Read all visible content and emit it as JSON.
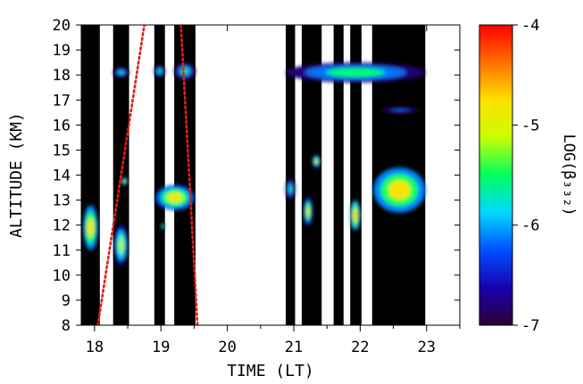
{
  "chart_data": {
    "type": "heatmap",
    "xlabel": "TIME (LT)",
    "ylabel": "ALTITUDE (KM)",
    "colorbar_label": "LOG(β₃₃₂)",
    "xlim": [
      17.8,
      23.5
    ],
    "ylim": [
      8,
      20
    ],
    "xticks": [
      18,
      19,
      20,
      21,
      22,
      23
    ],
    "yticks": [
      8,
      9,
      10,
      11,
      12,
      13,
      14,
      15,
      16,
      17,
      18,
      19,
      20
    ],
    "colorbar": {
      "range": [
        -7,
        -4
      ],
      "ticks": [
        -7,
        -6,
        -5,
        -4
      ],
      "colormap": [
        "#2a0033",
        "#1a00b0",
        "#0050ff",
        "#00d8ff",
        "#00ff60",
        "#c8ff00",
        "#ffe000",
        "#ff7000",
        "#ff0000"
      ]
    },
    "observation_periods": [
      [
        17.8,
        18.08
      ],
      [
        18.28,
        18.52
      ],
      [
        18.9,
        19.06
      ],
      [
        19.2,
        19.52
      ],
      [
        20.88,
        21.02
      ],
      [
        21.12,
        21.42
      ],
      [
        21.6,
        21.75
      ],
      [
        21.85,
        22.02
      ],
      [
        22.18,
        22.98
      ]
    ],
    "missing_value_color": "#000000",
    "cirrus_features": [
      {
        "x": [
          18.28,
          18.52
        ],
        "alt": [
          17.9,
          18.3
        ],
        "log_beta": -5.9
      },
      {
        "x": [
          18.9,
          19.06
        ],
        "alt": [
          17.9,
          18.4
        ],
        "log_beta": -5.8
      },
      {
        "x": [
          19.2,
          19.52
        ],
        "alt": [
          17.8,
          18.5
        ],
        "log_beta": -5.7
      },
      {
        "x": [
          20.88,
          22.98
        ],
        "alt": [
          17.7,
          18.5
        ],
        "log_beta": -5.5
      },
      {
        "x": [
          17.83,
          18.05
        ],
        "alt": [
          11.0,
          12.8
        ],
        "log_beta": -4.8
      },
      {
        "x": [
          18.3,
          18.5
        ],
        "alt": [
          10.4,
          12.0
        ],
        "log_beta": -5.2
      },
      {
        "x": [
          18.4,
          18.5
        ],
        "alt": [
          13.6,
          13.9
        ],
        "log_beta": -5.1
      },
      {
        "x": [
          18.92,
          19.5
        ],
        "alt": [
          12.6,
          13.6
        ],
        "log_beta": -4.9
      },
      {
        "x": [
          19.0,
          19.06
        ],
        "alt": [
          11.8,
          12.1
        ],
        "log_beta": -5.5
      },
      {
        "x": [
          20.88,
          21.02
        ],
        "alt": [
          13.0,
          13.9
        ],
        "log_beta": -5.8
      },
      {
        "x": [
          21.15,
          21.28
        ],
        "alt": [
          12.0,
          13.1
        ],
        "log_beta": -5.0
      },
      {
        "x": [
          21.28,
          21.4
        ],
        "alt": [
          14.3,
          14.8
        ],
        "log_beta": -5.1
      },
      {
        "x": [
          21.85,
          22.0
        ],
        "alt": [
          11.8,
          13.0
        ],
        "log_beta": -4.7
      },
      {
        "x": [
          22.2,
          22.98
        ],
        "alt": [
          12.5,
          14.3
        ],
        "log_beta": -4.8
      },
      {
        "x": [
          22.3,
          22.9
        ],
        "alt": [
          16.5,
          16.7
        ],
        "log_beta": -6.2
      }
    ],
    "reference_lines": [
      {
        "style": "dotted",
        "color": "#e0201a",
        "points": [
          [
            18.05,
            8
          ],
          [
            18.75,
            20
          ]
        ]
      },
      {
        "style": "dotted",
        "color": "#e0201a",
        "points": [
          [
            19.3,
            20
          ],
          [
            19.55,
            8
          ]
        ]
      }
    ]
  }
}
